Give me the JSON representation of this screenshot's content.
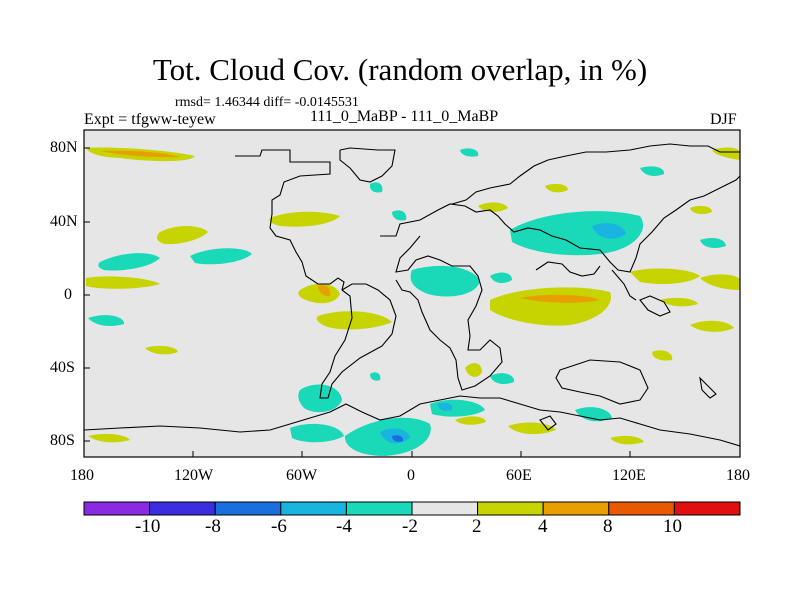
{
  "title": "Tot. Cloud Cov. (random overlap, in %)",
  "stats": "rmsd= 1.46344 diff= -0.0145531",
  "experiment": "Expt = tfgww-teyew",
  "subtitle": "111_0_MaBP - 111_0_MaBP",
  "season": "DJF",
  "x_ticks": [
    "180",
    "120W",
    "60W",
    "0",
    "60E",
    "120E",
    "180"
  ],
  "y_ticks": [
    "80N",
    "40N",
    "0",
    "40S",
    "80S"
  ],
  "colorbar": {
    "labels": [
      "-10",
      "-8",
      "-6",
      "-4",
      "-2",
      "2",
      "4",
      "8",
      "10"
    ],
    "colors": [
      "#8a2be2",
      "#3a2ee0",
      "#1a6fe0",
      "#19b4e0",
      "#19d9b8",
      "#e6e6e6",
      "#c8d400",
      "#e8a000",
      "#e85a00",
      "#e01010"
    ]
  },
  "colors": {
    "neutral": "#e6e6e6",
    "coastline": "#000000"
  }
}
